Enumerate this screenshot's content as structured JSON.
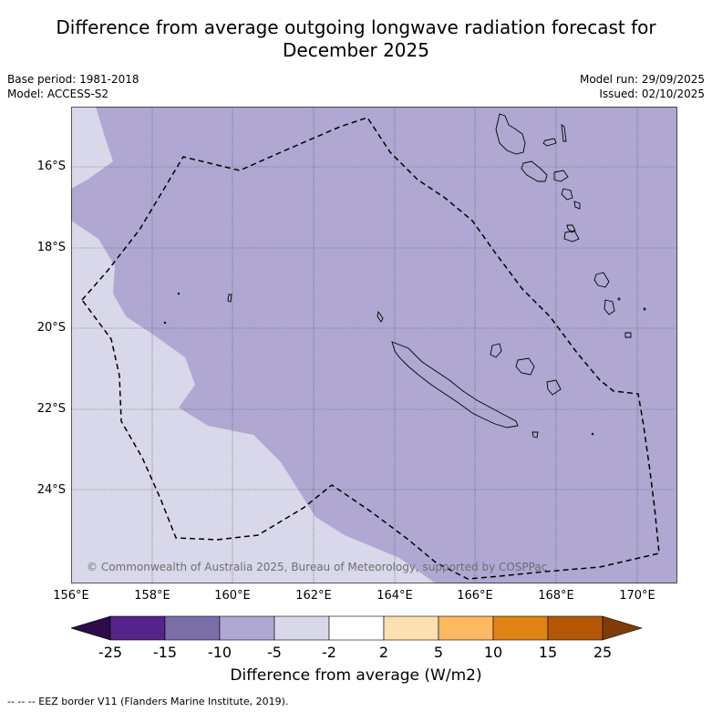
{
  "title_line1": "Difference from average outgoing longwave radiation forecast for",
  "title_line2": "December 2025",
  "base_period": "Base period: 1981-2018",
  "model": "Model: ACCESS-S2",
  "model_run": "Model run: 29/09/2025",
  "issued": "Issued: 02/10/2025",
  "copyright": "© Commonwealth of Australia 2025, Bureau of Meteorology, supported by COSPPac",
  "axes": {
    "lat_labels": [
      "16°S",
      "18°S",
      "20°S",
      "22°S",
      "24°S"
    ],
    "lon_labels": [
      "156°E",
      "158°E",
      "160°E",
      "162°E",
      "164°E",
      "166°E",
      "168°E",
      "170°E"
    ]
  },
  "colorbar": {
    "title": "Difference from average (W/m2)",
    "ticks": [
      "-25",
      "-15",
      "-10",
      "-5",
      "-2",
      "2",
      "5",
      "10",
      "15",
      "25"
    ],
    "colors": [
      "#2d0a4a",
      "#56238a",
      "#7b6ea8",
      "#b0a8d2",
      "#d8d8ea",
      "#ffffff",
      "#fedfb2",
      "#fdb862",
      "#e08214",
      "#b35806",
      "#7f3b08"
    ]
  },
  "legend_footer": "--  --  -- EEZ border V11 (Flanders Marine Institute, 2019)."
}
